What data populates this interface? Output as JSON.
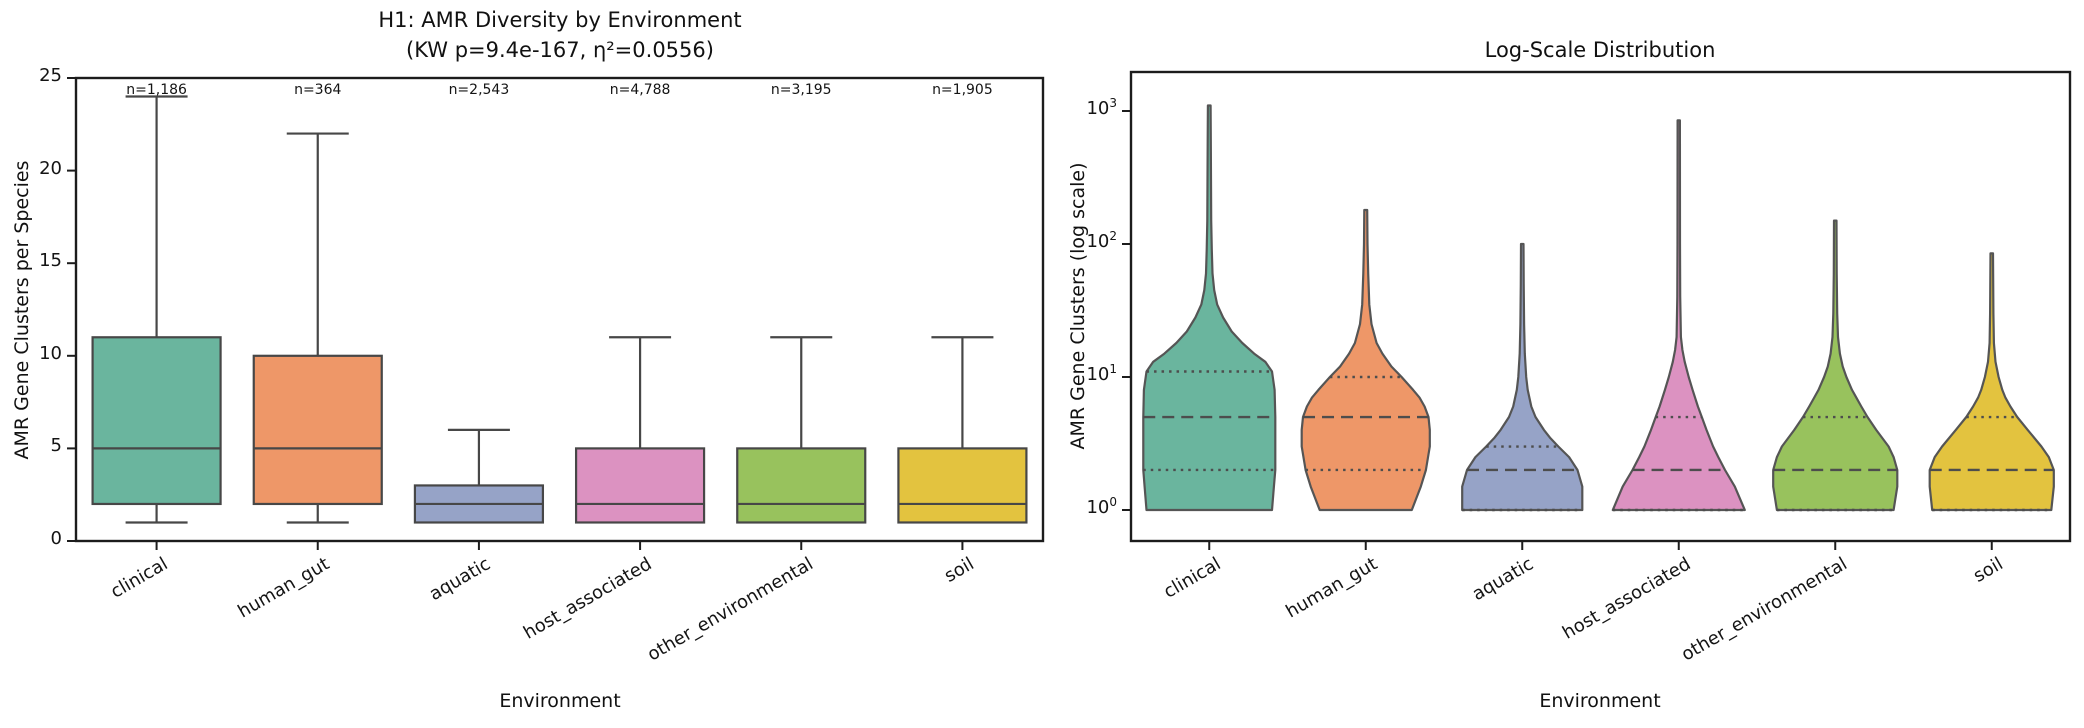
{
  "left_plot": {
    "title_line1": "H1: AMR Diversity by Environment",
    "title_line2": "(KW p=9.4e-167, η²=0.0556)",
    "xlabel": "Environment",
    "ylabel": "AMR Gene Clusters per Species",
    "yticks": [
      0,
      5,
      10,
      15,
      20,
      25
    ],
    "ylim": [
      0,
      25
    ]
  },
  "right_plot": {
    "title": "Log-Scale Distribution",
    "xlabel": "Environment",
    "ylabel": "AMR Gene Clusters (log scale)",
    "ytick_base": "10",
    "ytick_exponents": [
      0,
      1,
      2,
      3
    ]
  },
  "colors": {
    "spine": "#1c1c1c",
    "box_edge": "#474747",
    "violin_edge": "#555555",
    "quartile_line": "#4d4d4d",
    "palette": [
      "#6ab59e",
      "#ee9768",
      "#96a3c7",
      "#dc92c1",
      "#98c25d",
      "#e3c33f"
    ]
  },
  "chart_data": [
    {
      "type": "box",
      "title": "H1: AMR Diversity by Environment\n(KW p=9.4e-167, η²=0.0556)",
      "xlabel": "Environment",
      "ylabel": "AMR Gene Clusters per Species",
      "ylim": [
        0,
        25
      ],
      "yticks": [
        0,
        5,
        10,
        15,
        20,
        25
      ],
      "grid": false,
      "legend": "none",
      "categories": [
        "clinical",
        "human_gut",
        "aquatic",
        "host_associated",
        "other_environmental",
        "soil"
      ],
      "colors": [
        "#6ab59e",
        "#ee9768",
        "#96a3c7",
        "#dc92c1",
        "#98c25d",
        "#e3c33f"
      ],
      "stats": [
        {
          "category": "clinical",
          "n": 1186,
          "n_label": "n=1,186",
          "whislo": 1,
          "q1": 2,
          "med": 5,
          "q3": 11,
          "whishi": 24
        },
        {
          "category": "human_gut",
          "n": 364,
          "n_label": "n=364",
          "whislo": 1,
          "q1": 2,
          "med": 5,
          "q3": 10,
          "whishi": 22
        },
        {
          "category": "aquatic",
          "n": 2543,
          "n_label": "n=2,543",
          "whislo": 1,
          "q1": 1,
          "med": 2,
          "q3": 3,
          "whishi": 6
        },
        {
          "category": "host_associated",
          "n": 4788,
          "n_label": "n=4,788",
          "whislo": 1,
          "q1": 1,
          "med": 2,
          "q3": 5,
          "whishi": 11
        },
        {
          "category": "other_environmental",
          "n": 3195,
          "n_label": "n=3,195",
          "whislo": 1,
          "q1": 1,
          "med": 2,
          "q3": 5,
          "whishi": 11
        },
        {
          "category": "soil",
          "n": 1905,
          "n_label": "n=1,905",
          "whislo": 1,
          "q1": 1,
          "med": 2,
          "q3": 5,
          "whishi": 11
        }
      ]
    },
    {
      "type": "violin",
      "title": "Log-Scale Distribution",
      "xlabel": "Environment",
      "ylabel": "AMR Gene Clusters (log scale)",
      "yscale": "log",
      "ylim_exponents": [
        0,
        3
      ],
      "grid": false,
      "legend": "none",
      "inner": "quartile",
      "categories": [
        "clinical",
        "human_gut",
        "aquatic",
        "host_associated",
        "other_environmental",
        "soil"
      ],
      "colors": [
        "#6ab59e",
        "#ee9768",
        "#96a3c7",
        "#dc92c1",
        "#98c25d",
        "#e3c33f"
      ],
      "violins": [
        {
          "category": "clinical",
          "min": 1,
          "q1": 2,
          "med": 5,
          "q3": 11,
          "max": 1100,
          "rel_width": 1.0,
          "profile": [
            [
              1,
              0.95
            ],
            [
              1.5,
              0.98
            ],
            [
              2,
              1.0
            ],
            [
              3,
              1.0
            ],
            [
              5,
              1.0
            ],
            [
              8,
              0.99
            ],
            [
              11,
              0.95
            ],
            [
              13,
              0.85
            ],
            [
              15,
              0.68
            ],
            [
              18,
              0.5
            ],
            [
              22,
              0.34
            ],
            [
              28,
              0.21
            ],
            [
              35,
              0.12
            ],
            [
              45,
              0.075
            ],
            [
              60,
              0.05
            ],
            [
              90,
              0.038
            ],
            [
              150,
              0.03
            ],
            [
              300,
              0.026
            ],
            [
              600,
              0.023
            ],
            [
              1100,
              0.02
            ]
          ]
        },
        {
          "category": "human_gut",
          "min": 1,
          "q1": 2,
          "med": 5,
          "q3": 10,
          "max": 180,
          "rel_width": 0.97,
          "profile": [
            [
              1,
              0.72
            ],
            [
              1.5,
              0.86
            ],
            [
              2,
              0.94
            ],
            [
              3,
              1.0
            ],
            [
              4,
              1.0
            ],
            [
              5,
              0.98
            ],
            [
              6,
              0.92
            ],
            [
              7,
              0.84
            ],
            [
              8,
              0.74
            ],
            [
              10,
              0.56
            ],
            [
              12,
              0.4
            ],
            [
              15,
              0.26
            ],
            [
              18,
              0.17
            ],
            [
              25,
              0.09
            ],
            [
              35,
              0.055
            ],
            [
              60,
              0.038
            ],
            [
              100,
              0.028
            ],
            [
              180,
              0.022
            ]
          ]
        },
        {
          "category": "aquatic",
          "min": 1,
          "q1": 1,
          "med": 2,
          "q3": 3,
          "max": 100,
          "rel_width": 0.91,
          "profile": [
            [
              1,
              1.0
            ],
            [
              1.5,
              1.0
            ],
            [
              2,
              0.92
            ],
            [
              2.5,
              0.78
            ],
            [
              3,
              0.6
            ],
            [
              3.5,
              0.46
            ],
            [
              4,
              0.36
            ],
            [
              5,
              0.22
            ],
            [
              6,
              0.15
            ],
            [
              8,
              0.09
            ],
            [
              10,
              0.065
            ],
            [
              15,
              0.042
            ],
            [
              25,
              0.03
            ],
            [
              50,
              0.024
            ],
            [
              100,
              0.02
            ]
          ]
        },
        {
          "category": "host_associated",
          "min": 1,
          "q1": 1,
          "med": 2,
          "q3": 5,
          "max": 850,
          "rel_width": 1.0,
          "profile": [
            [
              1,
              1.0
            ],
            [
              1.5,
              0.85
            ],
            [
              2,
              0.7
            ],
            [
              2.5,
              0.6
            ],
            [
              3,
              0.52
            ],
            [
              4,
              0.42
            ],
            [
              5,
              0.35
            ],
            [
              6,
              0.29
            ],
            [
              8,
              0.21
            ],
            [
              10,
              0.15
            ],
            [
              13,
              0.09
            ],
            [
              16,
              0.055
            ],
            [
              20,
              0.032
            ],
            [
              40,
              0.022
            ],
            [
              100,
              0.019
            ],
            [
              850,
              0.018
            ]
          ]
        },
        {
          "category": "other_environmental",
          "min": 1,
          "q1": 1,
          "med": 2,
          "q3": 5,
          "max": 150,
          "rel_width": 0.94,
          "profile": [
            [
              1,
              0.94
            ],
            [
              1.5,
              1.0
            ],
            [
              2,
              1.0
            ],
            [
              2.5,
              0.94
            ],
            [
              3,
              0.86
            ],
            [
              4,
              0.66
            ],
            [
              5,
              0.52
            ],
            [
              6,
              0.42
            ],
            [
              7,
              0.34
            ],
            [
              8,
              0.27
            ],
            [
              10,
              0.18
            ],
            [
              12,
              0.12
            ],
            [
              15,
              0.075
            ],
            [
              20,
              0.045
            ],
            [
              30,
              0.032
            ],
            [
              60,
              0.024
            ],
            [
              150,
              0.02
            ]
          ]
        },
        {
          "category": "soil",
          "min": 1,
          "q1": 1,
          "med": 2,
          "q3": 5,
          "max": 85,
          "rel_width": 0.94,
          "profile": [
            [
              1,
              0.96
            ],
            [
              1.5,
              1.0
            ],
            [
              2,
              1.0
            ],
            [
              2.5,
              0.92
            ],
            [
              3,
              0.8
            ],
            [
              4,
              0.58
            ],
            [
              5,
              0.41
            ],
            [
              6,
              0.3
            ],
            [
              7,
              0.22
            ],
            [
              8,
              0.17
            ],
            [
              10,
              0.11
            ],
            [
              13,
              0.06
            ],
            [
              18,
              0.035
            ],
            [
              30,
              0.026
            ],
            [
              85,
              0.02
            ]
          ]
        }
      ]
    }
  ]
}
